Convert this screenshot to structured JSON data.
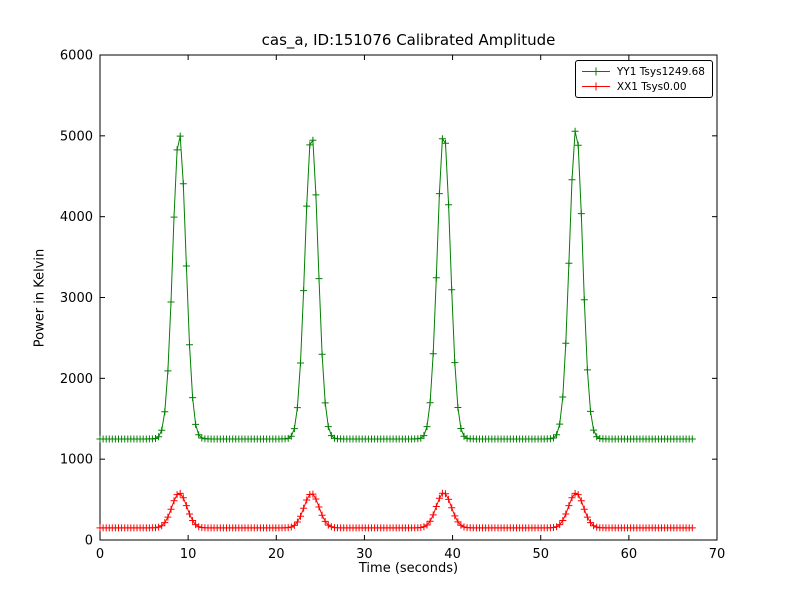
{
  "figure": {
    "background_color": "#ffffff",
    "axes_edge_color": "#000000"
  },
  "chart_data": {
    "type": "line",
    "title": "cas_a, ID:151076 Calibrated Amplitude",
    "xlabel": "Time (seconds)",
    "ylabel": "Power in Kelvin",
    "xlim": [
      0,
      70
    ],
    "ylim": [
      0,
      6000
    ],
    "xticks": [
      0,
      10,
      20,
      30,
      40,
      50,
      60,
      70
    ],
    "yticks": [
      0,
      1000,
      2000,
      3000,
      4000,
      5000,
      6000
    ],
    "grid": false,
    "marker": "+",
    "legend_position": "upper-right",
    "sampling": {
      "x_start": 0.0,
      "x_end": 67.2,
      "x_step": 0.35
    },
    "series": [
      {
        "name": "YY1 Tsys1249.68",
        "color": "#008000",
        "baseline": 1250,
        "peaks": [
          {
            "center": 9.0,
            "peak_value": 5030,
            "sigma": 0.75
          },
          {
            "center": 24.0,
            "peak_value": 5020,
            "sigma": 0.75
          },
          {
            "center": 39.0,
            "peak_value": 5040,
            "sigma": 0.75
          },
          {
            "center": 54.0,
            "peak_value": 5090,
            "sigma": 0.75
          }
        ]
      },
      {
        "name": "XX1 Tsys0.00",
        "color": "#ff0000",
        "baseline": 150,
        "peaks": [
          {
            "center": 9.0,
            "peak_value": 580,
            "sigma": 0.85
          },
          {
            "center": 24.0,
            "peak_value": 575,
            "sigma": 0.85
          },
          {
            "center": 39.0,
            "peak_value": 585,
            "sigma": 0.85
          },
          {
            "center": 54.0,
            "peak_value": 580,
            "sigma": 0.85
          }
        ]
      }
    ]
  }
}
